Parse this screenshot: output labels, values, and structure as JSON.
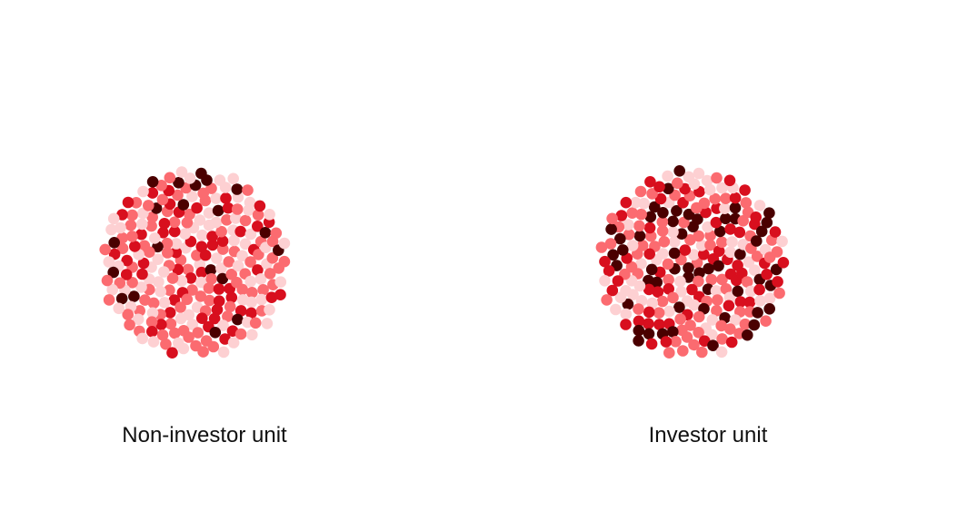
{
  "chart_data": {
    "type": "scatter",
    "description_free": true,
    "color_levels": [
      "#fdd0d2",
      "#fb6b70",
      "#d80f1e",
      "#4a0000"
    ],
    "groups": [
      {
        "label": "Non-investor unit",
        "counts": [
          80,
          95,
          55,
          20
        ]
      },
      {
        "label": "Investor unit",
        "counts": [
          55,
          80,
          60,
          55
        ]
      }
    ]
  }
}
